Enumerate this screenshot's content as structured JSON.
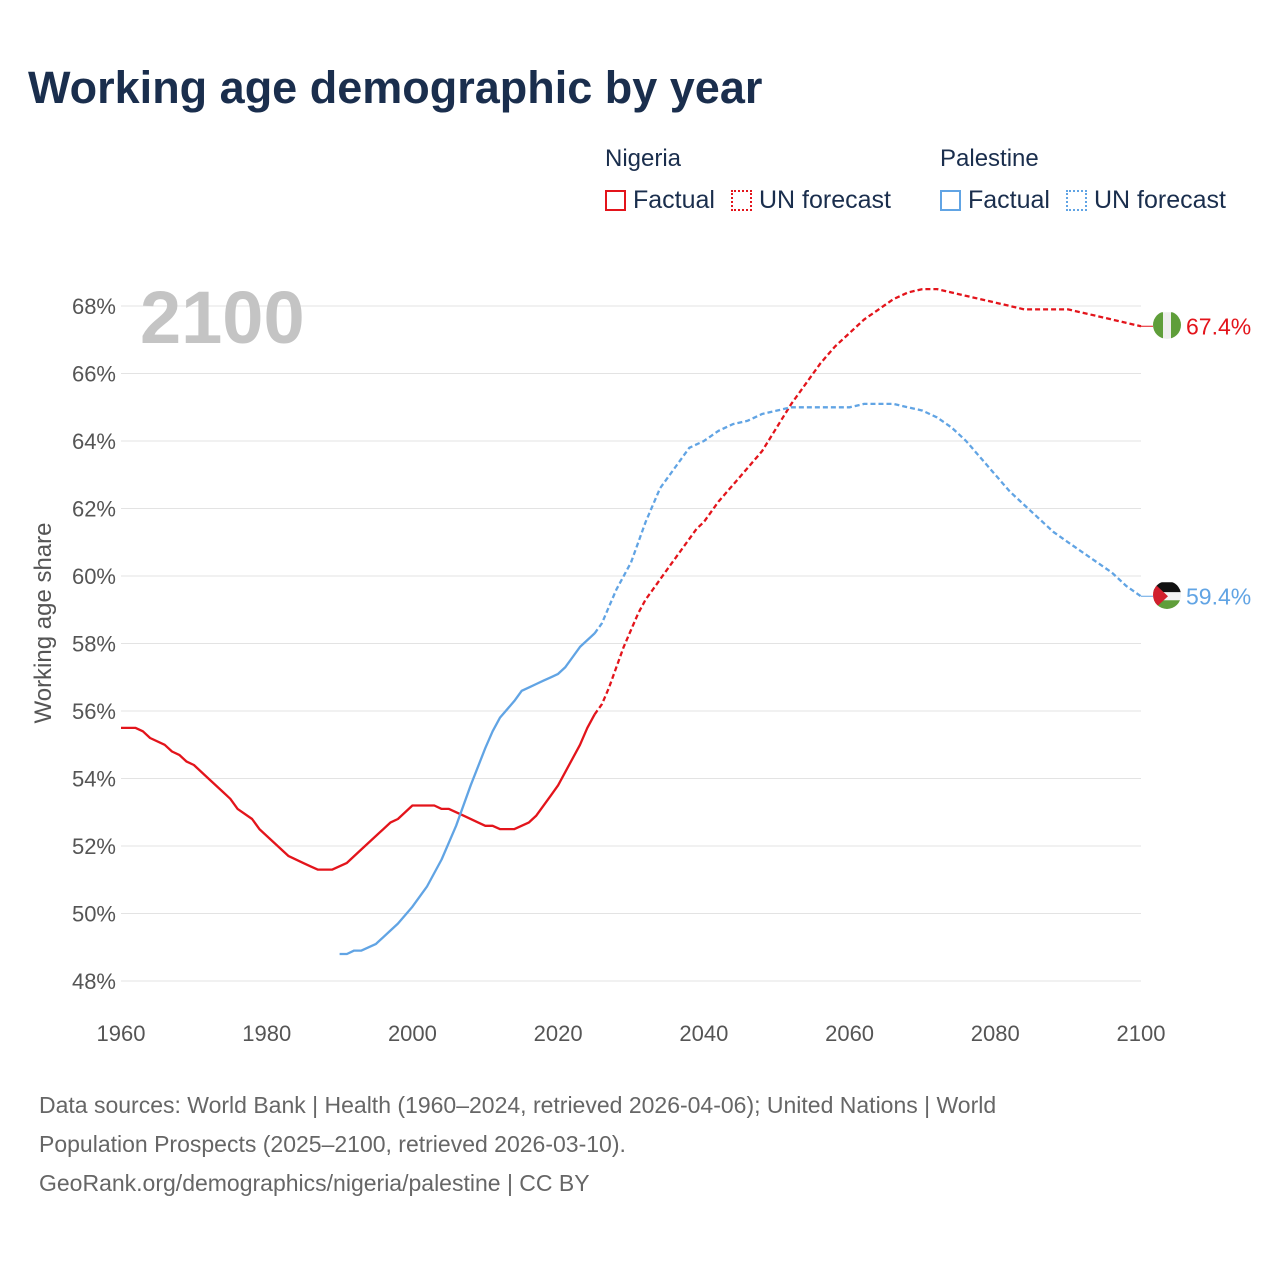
{
  "title": "Working age demographic by year",
  "legend": {
    "groups": [
      {
        "name": "Nigeria",
        "color": "#e3141b",
        "factual_label": "Factual",
        "forecast_label": "UN forecast"
      },
      {
        "name": "Palestine",
        "color": "#61a4e4",
        "factual_label": "Factual",
        "forecast_label": "UN forecast"
      }
    ]
  },
  "footer": {
    "line1": "Data sources: World Bank | Health (1960–2024, retrieved 2026-04-06); United Nations | World",
    "line2": "Population Prospects (2025–2100, retrieved 2026-03-10).",
    "line3": "GeoRank.org/demographics/nigeria/palestine | CC BY"
  },
  "chart_data": {
    "type": "line",
    "title": "Working age demographic by year",
    "xlabel": "",
    "ylabel": "Working age share",
    "xlim": [
      1960,
      2100
    ],
    "ylim": [
      47.5,
      69
    ],
    "x_ticks": [
      1960,
      1980,
      2000,
      2020,
      2040,
      2060,
      2080,
      2100
    ],
    "y_ticks": [
      48,
      50,
      52,
      54,
      56,
      58,
      60,
      62,
      64,
      66,
      68
    ],
    "y_tick_labels": [
      "48%",
      "50%",
      "52%",
      "54%",
      "56%",
      "58%",
      "60%",
      "62%",
      "64%",
      "66%",
      "68%"
    ],
    "grid": true,
    "year_watermark": "2100",
    "series": [
      {
        "name": "Nigeria",
        "color": "#e3141b",
        "end_label": "67.4%",
        "flag": "nigeria",
        "factual": [
          [
            1960,
            55.5
          ],
          [
            1962,
            55.5
          ],
          [
            1963,
            55.4
          ],
          [
            1964,
            55.2
          ],
          [
            1966,
            55.0
          ],
          [
            1967,
            54.8
          ],
          [
            1968,
            54.7
          ],
          [
            1969,
            54.5
          ],
          [
            1970,
            54.4
          ],
          [
            1972,
            54.0
          ],
          [
            1974,
            53.6
          ],
          [
            1975,
            53.4
          ],
          [
            1976,
            53.1
          ],
          [
            1978,
            52.8
          ],
          [
            1979,
            52.5
          ],
          [
            1981,
            52.1
          ],
          [
            1983,
            51.7
          ],
          [
            1985,
            51.5
          ],
          [
            1986,
            51.4
          ],
          [
            1987,
            51.3
          ],
          [
            1988,
            51.3
          ],
          [
            1989,
            51.3
          ],
          [
            1991,
            51.5
          ],
          [
            1993,
            51.9
          ],
          [
            1995,
            52.3
          ],
          [
            1997,
            52.7
          ],
          [
            1998,
            52.8
          ],
          [
            2000,
            53.2
          ],
          [
            2002,
            53.2
          ],
          [
            2003,
            53.2
          ],
          [
            2004,
            53.1
          ],
          [
            2005,
            53.1
          ],
          [
            2007,
            52.9
          ],
          [
            2009,
            52.7
          ],
          [
            2010,
            52.6
          ],
          [
            2011,
            52.6
          ],
          [
            2012,
            52.5
          ],
          [
            2014,
            52.5
          ],
          [
            2016,
            52.7
          ],
          [
            2017,
            52.9
          ],
          [
            2019,
            53.5
          ],
          [
            2020,
            53.8
          ],
          [
            2022,
            54.6
          ],
          [
            2023,
            55.0
          ],
          [
            2024,
            55.5
          ],
          [
            2025,
            55.9
          ]
        ],
        "forecast": [
          [
            2025,
            55.9
          ],
          [
            2026,
            56.2
          ],
          [
            2027,
            56.7
          ],
          [
            2028,
            57.3
          ],
          [
            2029,
            57.9
          ],
          [
            2030,
            58.4
          ],
          [
            2031,
            58.9
          ],
          [
            2032,
            59.3
          ],
          [
            2033,
            59.6
          ],
          [
            2034,
            59.9
          ],
          [
            2035,
            60.2
          ],
          [
            2036,
            60.5
          ],
          [
            2037,
            60.8
          ],
          [
            2038,
            61.1
          ],
          [
            2039,
            61.4
          ],
          [
            2040,
            61.6
          ],
          [
            2042,
            62.2
          ],
          [
            2044,
            62.7
          ],
          [
            2046,
            63.2
          ],
          [
            2048,
            63.7
          ],
          [
            2050,
            64.4
          ],
          [
            2052,
            65.1
          ],
          [
            2054,
            65.7
          ],
          [
            2056,
            66.3
          ],
          [
            2058,
            66.8
          ],
          [
            2060,
            67.2
          ],
          [
            2062,
            67.6
          ],
          [
            2064,
            67.9
          ],
          [
            2066,
            68.2
          ],
          [
            2068,
            68.4
          ],
          [
            2070,
            68.5
          ],
          [
            2072,
            68.5
          ],
          [
            2074,
            68.4
          ],
          [
            2076,
            68.3
          ],
          [
            2078,
            68.2
          ],
          [
            2080,
            68.1
          ],
          [
            2082,
            68.0
          ],
          [
            2084,
            67.9
          ],
          [
            2086,
            67.9
          ],
          [
            2088,
            67.9
          ],
          [
            2090,
            67.9
          ],
          [
            2092,
            67.8
          ],
          [
            2094,
            67.7
          ],
          [
            2096,
            67.6
          ],
          [
            2098,
            67.5
          ],
          [
            2100,
            67.4
          ]
        ]
      },
      {
        "name": "Palestine",
        "color": "#61a4e4",
        "end_label": "59.4%",
        "flag": "palestine",
        "factual": [
          [
            1990,
            48.8
          ],
          [
            1991,
            48.8
          ],
          [
            1992,
            48.9
          ],
          [
            1993,
            48.9
          ],
          [
            1995,
            49.1
          ],
          [
            1997,
            49.5
          ],
          [
            1998,
            49.7
          ],
          [
            2000,
            50.2
          ],
          [
            2002,
            50.8
          ],
          [
            2004,
            51.6
          ],
          [
            2006,
            52.6
          ],
          [
            2008,
            53.8
          ],
          [
            2010,
            54.9
          ],
          [
            2011,
            55.4
          ],
          [
            2012,
            55.8
          ],
          [
            2014,
            56.3
          ],
          [
            2015,
            56.6
          ],
          [
            2016,
            56.7
          ],
          [
            2017,
            56.8
          ],
          [
            2018,
            56.9
          ],
          [
            2019,
            57.0
          ],
          [
            2020,
            57.1
          ],
          [
            2021,
            57.3
          ],
          [
            2022,
            57.6
          ],
          [
            2023,
            57.9
          ],
          [
            2024,
            58.1
          ],
          [
            2025,
            58.3
          ]
        ],
        "forecast": [
          [
            2025,
            58.3
          ],
          [
            2026,
            58.6
          ],
          [
            2027,
            59.1
          ],
          [
            2028,
            59.6
          ],
          [
            2030,
            60.4
          ],
          [
            2032,
            61.6
          ],
          [
            2034,
            62.6
          ],
          [
            2036,
            63.2
          ],
          [
            2038,
            63.8
          ],
          [
            2040,
            64.0
          ],
          [
            2042,
            64.3
          ],
          [
            2044,
            64.5
          ],
          [
            2046,
            64.6
          ],
          [
            2048,
            64.8
          ],
          [
            2050,
            64.9
          ],
          [
            2052,
            65.0
          ],
          [
            2054,
            65.0
          ],
          [
            2056,
            65.0
          ],
          [
            2058,
            65.0
          ],
          [
            2060,
            65.0
          ],
          [
            2062,
            65.1
          ],
          [
            2064,
            65.1
          ],
          [
            2066,
            65.1
          ],
          [
            2068,
            65.0
          ],
          [
            2070,
            64.9
          ],
          [
            2072,
            64.7
          ],
          [
            2074,
            64.4
          ],
          [
            2076,
            64.0
          ],
          [
            2078,
            63.5
          ],
          [
            2080,
            63.0
          ],
          [
            2082,
            62.5
          ],
          [
            2084,
            62.1
          ],
          [
            2086,
            61.7
          ],
          [
            2088,
            61.3
          ],
          [
            2090,
            61.0
          ],
          [
            2092,
            60.7
          ],
          [
            2094,
            60.4
          ],
          [
            2096,
            60.1
          ],
          [
            2098,
            59.7
          ],
          [
            2100,
            59.4
          ]
        ]
      }
    ]
  }
}
